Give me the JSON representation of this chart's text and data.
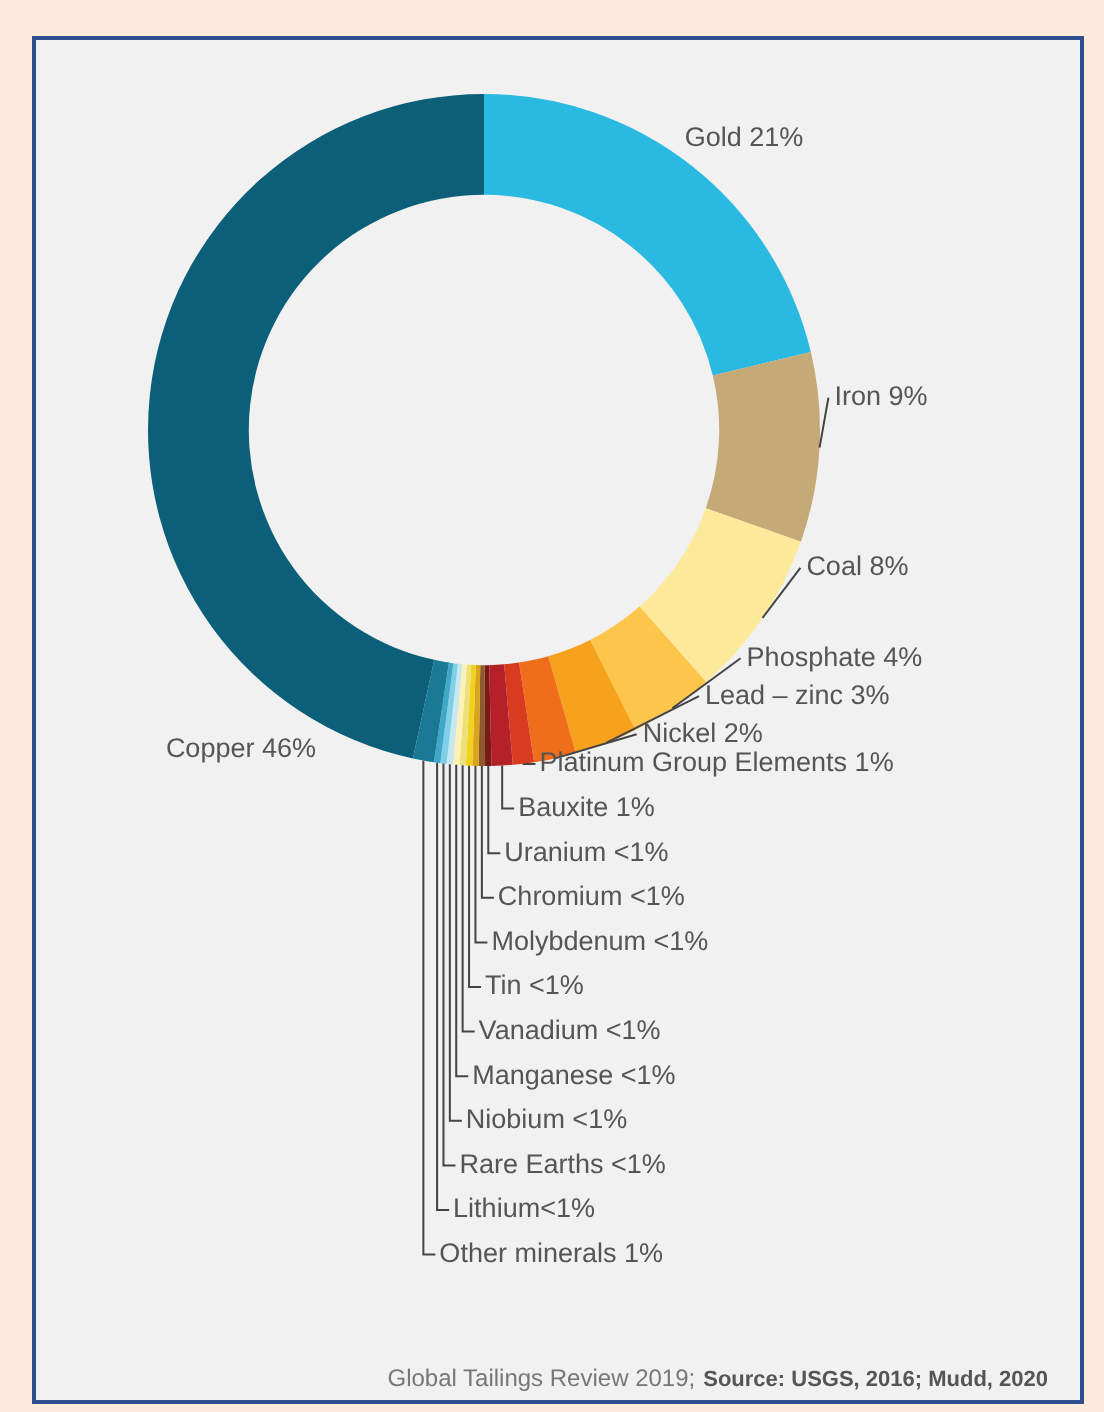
{
  "chart_data": {
    "type": "donut",
    "categories": [
      "Gold 21%",
      "Iron 9%",
      "Coal 8%",
      "Phosphate 4%",
      "Lead – zinc 3%",
      "Nickel 2%",
      "Platinum Group Elements 1%",
      "Bauxite 1%",
      "Uranium <1%",
      "Chromium <1%",
      "Molybdenum <1%",
      "Tin <1%",
      "Vanadium <1%",
      "Manganese <1%",
      "Niobium <1%",
      "Rare Earths <1%",
      "Lithium<1%",
      "Other minerals 1%",
      "Copper 46%"
    ],
    "values": [
      21,
      9,
      8,
      4,
      3,
      2,
      1,
      1,
      0.3,
      0.3,
      0.3,
      0.3,
      0.3,
      0.3,
      0.3,
      0.3,
      0.3,
      1,
      46
    ],
    "colors": [
      "#2ab9e1",
      "#c5aa78",
      "#fde99a",
      "#fdc54a",
      "#f7a11c",
      "#f06d1c",
      "#d93b1f",
      "#b52029",
      "#7a1a16",
      "#8f5a2a",
      "#d9a51a",
      "#f2d21c",
      "#ebe07a",
      "#fff1b3",
      "#c6e8f1",
      "#7fd0e6",
      "#3fa8c8",
      "#1a7a96",
      "#0c5f78"
    ],
    "legend": false,
    "annotations": [
      "Global Tailings Review 2019;",
      "Source: USGS, 2016; Mudd, 2020"
    ]
  }
}
